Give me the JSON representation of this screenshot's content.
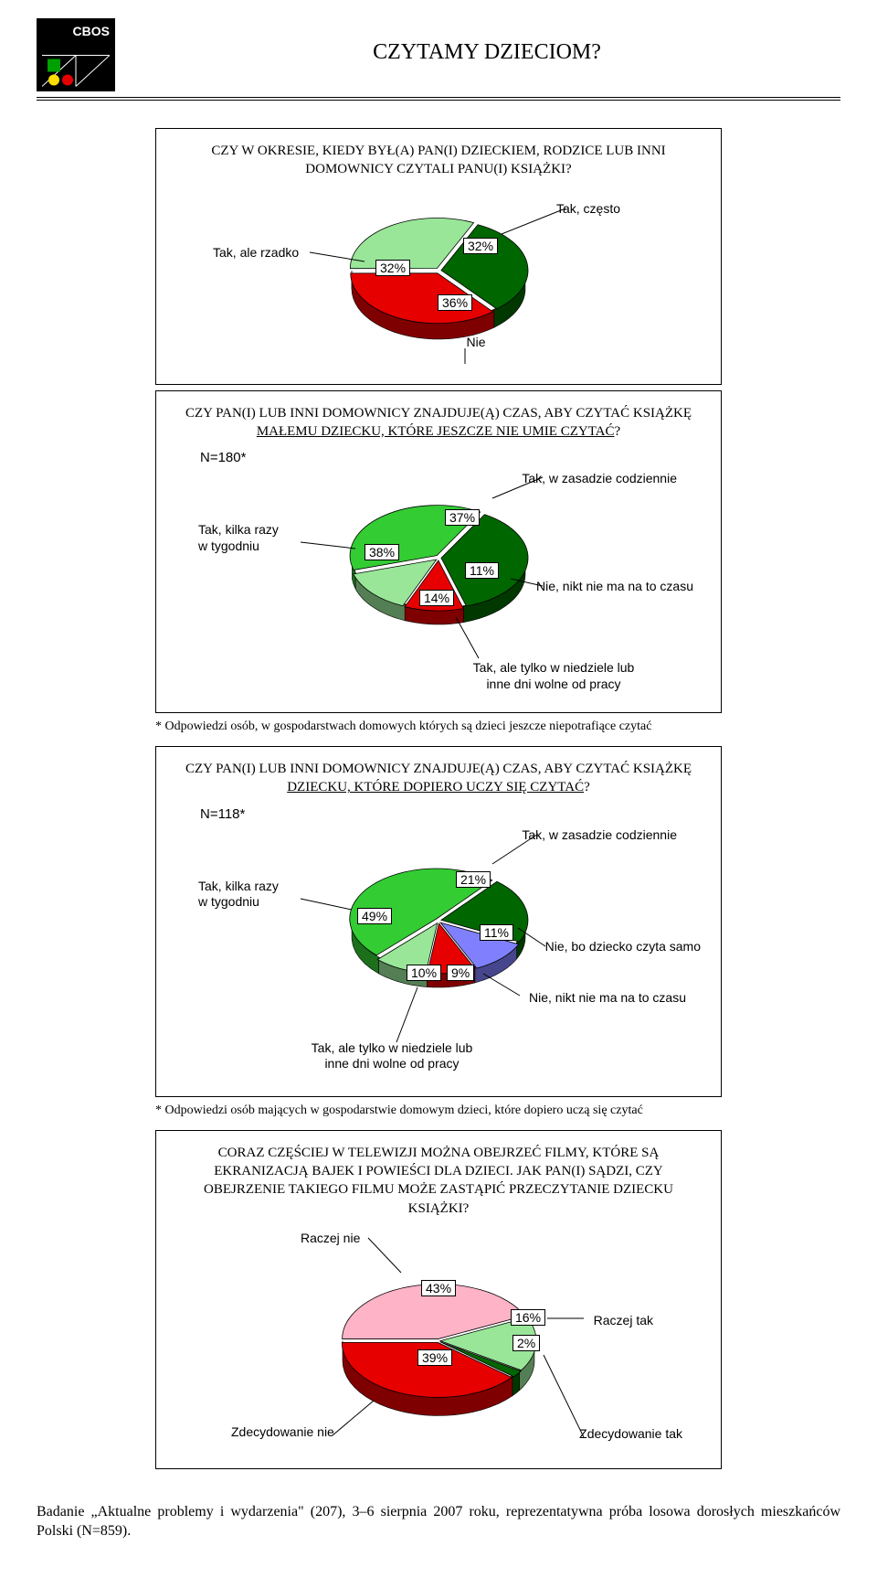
{
  "header": {
    "logo_text": "CBOS",
    "title": "CZYTAMY DZIECIOM?"
  },
  "chart1": {
    "type": "pie",
    "question": "CZY W OKRESIE, KIEDY BYŁ(A) PAN(I) DZIECKIEM, RODZICE LUB INNI DOMOWNICY CZYTALI PANU(I) KSIĄŻKI?",
    "slices": [
      {
        "label": "Tak, często",
        "value": 32,
        "color": "#006600"
      },
      {
        "label": "Nie",
        "value": 36,
        "color": "#e60000"
      },
      {
        "label": "Tak, ale rzadko",
        "value": 32,
        "color": "#99e699"
      }
    ]
  },
  "chart2": {
    "type": "pie",
    "question_a": "CZY PAN(I) LUB INNI DOMOWNICY ZNAJDUJE(Ą) CZAS, ABY CZYTAĆ KSIĄŻKĘ ",
    "question_underlined": "MAŁEMU DZIECKU, KTÓRE JESZCZE NIE UMIE CZYTAĆ",
    "question_b": "?",
    "n": "N=180*",
    "slices": [
      {
        "label": "Tak, w zasadzie codziennie",
        "value": 37,
        "color": "#006600"
      },
      {
        "label": "Nie, nikt nie ma na to czasu",
        "value": 11,
        "color": "#e60000"
      },
      {
        "label": "Tak, ale tylko w niedziele lub inne dni wolne od pracy",
        "value": 14,
        "color": "#99e699"
      },
      {
        "label": "Tak, kilka razy w tygodniu",
        "value": 38,
        "color": "#33cc33"
      }
    ],
    "footnote": "* Odpowiedzi osób, w gospodarstwach domowych których są dzieci jeszcze niepotrafiące czytać"
  },
  "chart3": {
    "type": "pie",
    "question_a": "CZY PAN(I) LUB INNI DOMOWNICY ZNAJDUJE(Ą)  CZAS, ABY CZYTAĆ KSIĄŻKĘ ",
    "question_underlined": "DZIECKU, KTÓRE DOPIERO UCZY SIĘ CZYTAĆ",
    "question_b": "?",
    "n": "N=118*",
    "slices": [
      {
        "label": "Tak, w zasadzie codziennie",
        "value": 21,
        "color": "#006600"
      },
      {
        "label": "Nie, bo dziecko czyta samo",
        "value": 11,
        "color": "#8080ff"
      },
      {
        "label": "Nie, nikt nie ma na to czasu",
        "value": 9,
        "color": "#e60000"
      },
      {
        "label": "Tak, ale tylko w niedziele lub inne dni wolne od pracy",
        "value": 10,
        "color": "#99e699"
      },
      {
        "label": "Tak, kilka razy w tygodniu",
        "value": 49,
        "color": "#33cc33"
      }
    ],
    "footnote": "* Odpowiedzi osób mających w gospodarstwie domowym dzieci, które dopiero uczą się czytać"
  },
  "chart4": {
    "type": "pie",
    "question": "CORAZ CZĘŚCIEJ W TELEWIZJI MOŻNA OBEJRZEĆ FILMY, KTÓRE SĄ EKRANIZACJĄ BAJEK I POWIEŚCI DLA DZIECI. JAK PAN(I) SĄDZI, CZY OBEJRZENIE TAKIEGO FILMU MOŻE ZASTĄPIĆ PRZECZYTANIE DZIECKU KSIĄŻKI?",
    "slices": [
      {
        "label": "Raczej nie",
        "value": 43,
        "color": "#ffb3c6"
      },
      {
        "label": "Raczej tak",
        "value": 16,
        "color": "#99e699"
      },
      {
        "label": "Zdecydowanie tak",
        "value": 2,
        "color": "#006600"
      },
      {
        "label": "Zdecydowanie nie",
        "value": 39,
        "color": "#e60000"
      }
    ]
  },
  "source": "Badanie „Aktualne problemy i wydarzenia\" (207), 3–6 sierpnia 2007 roku, reprezentatywna próba losowa dorosłych mieszkańców Polski (N=859)."
}
